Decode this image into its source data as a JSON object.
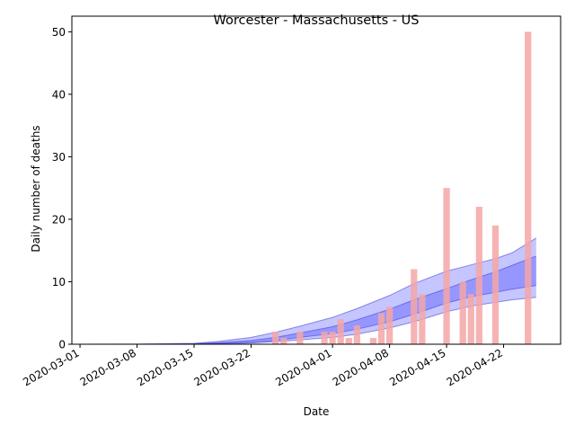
{
  "chart_data": {
    "type": "bar",
    "title": "Worcester - Massachusetts - US",
    "xlabel": "Date",
    "ylabel": "Daily number of deaths",
    "ylim": [
      0,
      52.5
    ],
    "xlim": [
      "2020-02-29",
      "2020-04-29"
    ],
    "grid": false,
    "x_ticks": [
      "2020-03-01",
      "2020-03-08",
      "2020-03-15",
      "2020-03-22",
      "2020-04-01",
      "2020-04-08",
      "2020-04-15",
      "2020-04-22"
    ],
    "y_ticks": [
      0,
      10,
      20,
      30,
      40,
      50
    ],
    "colors": {
      "bars": "#f4a6a6",
      "band": "#4a4aff",
      "band_line": "#3a3ad8"
    },
    "series": [
      {
        "type": "bar",
        "x": [
          "2020-03-25",
          "2020-03-26",
          "2020-03-28",
          "2020-03-31",
          "2020-04-01",
          "2020-04-02",
          "2020-04-03",
          "2020-04-04",
          "2020-04-06",
          "2020-04-07",
          "2020-04-08",
          "2020-04-11",
          "2020-04-12",
          "2020-04-15",
          "2020-04-17",
          "2020-04-18",
          "2020-04-19",
          "2020-04-21",
          "2020-04-25"
        ],
        "values": [
          2,
          1,
          2,
          2,
          2,
          4,
          1,
          3,
          1,
          5,
          6,
          12,
          8,
          25,
          10,
          8,
          22,
          19,
          50
        ]
      },
      {
        "type": "band",
        "x": [
          "2020-03-01",
          "2020-03-08",
          "2020-03-15",
          "2020-03-18",
          "2020-03-22",
          "2020-03-25",
          "2020-03-28",
          "2020-04-01",
          "2020-04-04",
          "2020-04-08",
          "2020-04-11",
          "2020-04-15",
          "2020-04-18",
          "2020-04-21",
          "2020-04-23",
          "2020-04-26"
        ],
        "outer_low": [
          0,
          0,
          0,
          0.05,
          0.2,
          0.4,
          0.7,
          1.1,
          1.6,
          2.6,
          3.6,
          5.2,
          6.1,
          6.7,
          7.1,
          7.5
        ],
        "inner_low": [
          0,
          0,
          0,
          0.1,
          0.3,
          0.6,
          1.1,
          1.7,
          2.4,
          3.6,
          4.8,
          6.6,
          7.6,
          8.3,
          8.8,
          9.4
        ],
        "median": [
          0,
          0,
          0.05,
          0.15,
          0.4,
          0.8,
          1.4,
          2.2,
          3.1,
          4.6,
          6.0,
          8.0,
          9.2,
          10.3,
          11.2,
          12.2
        ],
        "inner_high": [
          0,
          0,
          0.08,
          0.25,
          0.6,
          1.1,
          1.8,
          2.8,
          3.9,
          5.6,
          7.1,
          8.9,
          10.3,
          11.6,
          12.6,
          14.1
        ],
        "outer_high": [
          0,
          0.02,
          0.15,
          0.45,
          1.1,
          1.9,
          2.9,
          4.3,
          5.7,
          7.8,
          9.7,
          11.7,
          12.7,
          13.7,
          14.6,
          17.0
        ]
      }
    ]
  }
}
